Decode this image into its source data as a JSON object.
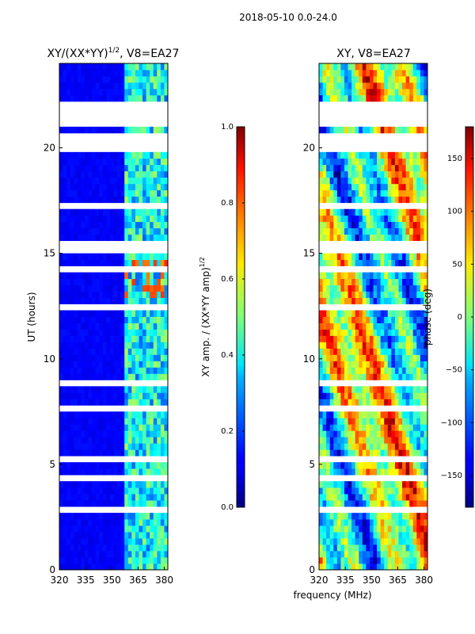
{
  "figure": {
    "suptitle": "2018-05-10 0.0-24.0",
    "xlabel_shared": "frequency (MHz)"
  },
  "chart_data": [
    {
      "type": "heatmap",
      "title": "XY/(XX*YY)^1/2, V8=EA27",
      "title_main": "XY/(XX*YY)",
      "title_exp": "1/2",
      "title_tail": ", V8=EA27",
      "xlabel": "",
      "ylabel": "UT (hours)",
      "xlim": [
        320,
        382
      ],
      "ylim": [
        0,
        24
      ],
      "xticks": [
        320,
        335,
        350,
        365,
        380
      ],
      "yticks": [
        0,
        5,
        10,
        15,
        20
      ],
      "colormap": "jet",
      "colorbar": {
        "label": "XY amp. / (XX*YY amp)^1/2",
        "label_main": "XY amp. / (XX*YY amp)",
        "label_exp": "1/2",
        "range": [
          0.0,
          1.0
        ],
        "ticks": [
          "0.0",
          "0.2",
          "0.4",
          "0.6",
          "0.8",
          "1.0"
        ],
        "tick_values": [
          0.0,
          0.2,
          0.4,
          0.6,
          0.8,
          1.0
        ]
      },
      "data_gaps_ut": [
        [
          0.8,
          0.9
        ],
        [
          2.8,
          2.9
        ],
        [
          3.2,
          3.3
        ],
        [
          3.5,
          3.7
        ],
        [
          4.3,
          4.4
        ],
        [
          5.2,
          5.3
        ],
        [
          6.0,
          6.1
        ],
        [
          7.6,
          7.7
        ],
        [
          8.6,
          8.9
        ],
        [
          9.6,
          9.7
        ],
        [
          10.7,
          10.8
        ],
        [
          12.4,
          12.5
        ],
        [
          13.2,
          13.3
        ],
        [
          14.2,
          14.3
        ],
        [
          15.0,
          15.6
        ],
        [
          15.9,
          16.0
        ],
        [
          16.4,
          16.6
        ],
        [
          17.2,
          17.3
        ],
        [
          17.6,
          17.8
        ],
        [
          19.7,
          20.6
        ],
        [
          20.9,
          22.1
        ],
        [
          22.7,
          22.8
        ],
        [
          23.3,
          23.4
        ],
        [
          23.7,
          23.8
        ]
      ]
    },
    {
      "type": "heatmap",
      "title": "XY, V8=EA27",
      "xlabel": "frequency (MHz)",
      "ylabel": "",
      "xlim": [
        320,
        382
      ],
      "ylim": [
        0,
        24
      ],
      "xticks": [
        320,
        335,
        350,
        365,
        380
      ],
      "yticks": [
        0,
        5,
        10,
        15,
        20
      ],
      "colormap": "jet",
      "colorbar": {
        "label": "phase (deg)",
        "range": [
          -180,
          180
        ],
        "ticks": [
          "−150",
          "−100",
          "−50",
          "0",
          "50",
          "100",
          "150"
        ],
        "tick_values": [
          -150,
          -100,
          -50,
          0,
          50,
          100,
          150
        ]
      },
      "data_gaps_ut": [
        [
          0.8,
          0.9
        ],
        [
          2.8,
          2.9
        ],
        [
          3.2,
          3.3
        ],
        [
          3.5,
          3.7
        ],
        [
          4.3,
          4.4
        ],
        [
          5.2,
          5.3
        ],
        [
          6.0,
          6.1
        ],
        [
          7.6,
          7.7
        ],
        [
          8.6,
          8.9
        ],
        [
          9.6,
          9.7
        ],
        [
          10.7,
          10.8
        ],
        [
          12.4,
          12.5
        ],
        [
          13.2,
          13.3
        ],
        [
          14.2,
          14.3
        ],
        [
          15.0,
          15.6
        ],
        [
          15.9,
          16.0
        ],
        [
          16.4,
          16.6
        ],
        [
          17.2,
          17.3
        ],
        [
          17.6,
          17.8
        ],
        [
          19.7,
          20.6
        ],
        [
          20.9,
          22.1
        ],
        [
          22.7,
          22.8
        ],
        [
          23.3,
          23.4
        ],
        [
          23.7,
          23.8
        ]
      ]
    }
  ]
}
